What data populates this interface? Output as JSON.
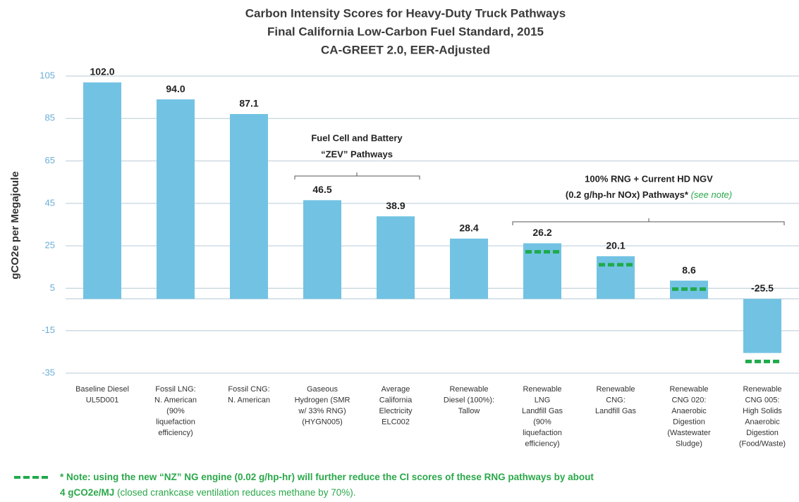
{
  "chart_data": {
    "type": "bar",
    "title": [
      "Carbon Intensity Scores for Heavy-Duty Truck Pathways",
      "Final California Low-Carbon Fuel Standard, 2015",
      "CA-GREET 2.0, EER-Adjusted"
    ],
    "y_label": "gCO2e per Megajoule",
    "categories": [
      [
        "Baseline Diesel",
        "UL5D001"
      ],
      [
        "Fossil LNG:",
        "N. American",
        "(90%",
        "liquefaction",
        "efficiency)"
      ],
      [
        "Fossil CNG:",
        "N. American"
      ],
      [
        "Gaseous",
        "Hydrogen (SMR",
        "w/ 33% RNG)",
        "(HYGN005)"
      ],
      [
        "Average",
        "California",
        "Electricity",
        "ELC002"
      ],
      [
        "Renewable",
        "Diesel (100%):",
        "Tallow"
      ],
      [
        "Renewable",
        "LNG",
        "Landfill Gas",
        "(90%",
        "liquefaction",
        "efficiency)"
      ],
      [
        "Renewable",
        "CNG:",
        "Landfill Gas"
      ],
      [
        "Renewable",
        "CNG 020:",
        "Anaerobic",
        "Digestion",
        "(Wastewater",
        "Sludge)"
      ],
      [
        "Renewable",
        "CNG 005:",
        "High Solids",
        "Anaerobic",
        "Digestion",
        "(Food/Waste)"
      ]
    ],
    "values": [
      102.0,
      94.0,
      87.1,
      46.5,
      38.9,
      28.4,
      26.2,
      20.1,
      8.6,
      -25.5
    ],
    "value_labels": [
      "102.0",
      "94.0",
      "87.1",
      "46.5",
      "38.9",
      "28.4",
      "26.2",
      "20.1",
      "8.6",
      "-25.5"
    ],
    "nz_values": [
      null,
      null,
      null,
      null,
      null,
      null,
      22.2,
      16.1,
      4.6,
      -29.5
    ],
    "color": "#72c3e3",
    "nz_color": "#1faa4b",
    "ylim": [
      -35,
      105
    ],
    "yticks": [
      105,
      85,
      65,
      45,
      25,
      5,
      -15,
      -35
    ],
    "grid": true,
    "annotations": [
      {
        "lines": [
          "Fuel Cell and Battery",
          "“ZEV” Pathways"
        ]
      },
      {
        "lines": [
          "100% RNG + Current HD NGV",
          "(0.2 g/hp-hr NOx) Pathways*"
        ],
        "note": " (see note)"
      }
    ],
    "note": [
      "* Note:",
      " using the new “NZ” NG engine (0.02 g/hp-hr) will further reduce the CI scores of these RNG pathways by about",
      "4 gCO2e/MJ",
      " (closed crankcase ventilation reduces methane by 70%)."
    ]
  }
}
